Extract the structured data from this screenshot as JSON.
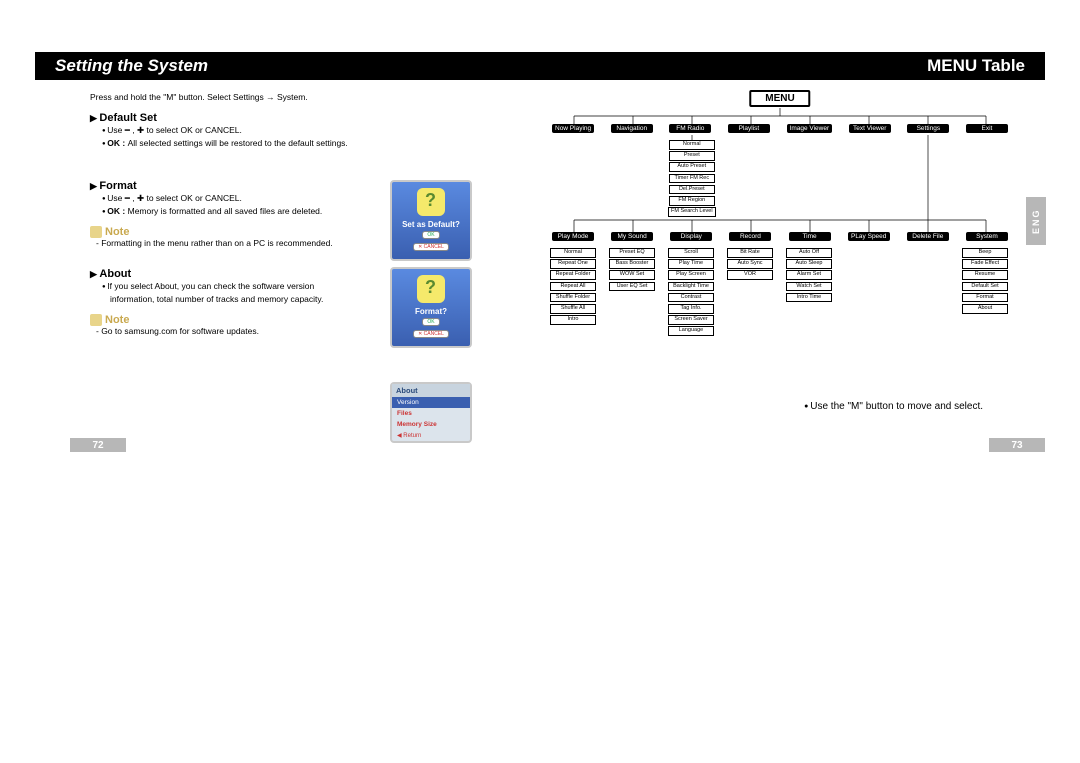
{
  "left": {
    "title": "Setting the System",
    "instruction": "Press and hold the \"M\" button. Select Settings → System.",
    "default_set": {
      "heading": "Default Set",
      "line1": "Use ━ , ✚ to select OK or CANCEL.",
      "line2_prefix": "OK : ",
      "line2": "All selected settings will be restored to the default settings."
    },
    "format": {
      "heading": "Format",
      "line1": "Use ━ , ✚ to select OK or CANCEL.",
      "line2_prefix": "OK : ",
      "line2": "Memory is formatted and all saved files are deleted."
    },
    "note1": {
      "label": "Note",
      "text": "- Formatting in the menu rather than on a PC is recommended."
    },
    "about": {
      "heading": "About",
      "line1": "If you select About, you can check the software version information, total number of tracks and memory capacity."
    },
    "note2": {
      "label": "Note",
      "text": "- Go to samsung.com for software updates."
    },
    "mock_default": {
      "title": "Set as Default?",
      "ok": "OK",
      "cancel": "✕ CANCEL"
    },
    "mock_format": {
      "title": "Format?",
      "ok": "OK",
      "cancel": "✕ CANCEL"
    },
    "mock_about": {
      "title": "About",
      "rows": [
        "Version",
        "Files",
        "Memory Size"
      ],
      "return": "◀ Return"
    },
    "page_num": "72"
  },
  "right": {
    "title": "MENU Table",
    "menu_root": "MENU",
    "eng": "ENG",
    "lvl1": [
      "Now Playing",
      "Navigation",
      "FM Radio",
      "Playlist",
      "Image Viewer",
      "Text Viewer",
      "Settings",
      "Exit"
    ],
    "fm_children": [
      "Normal",
      "Preset",
      "Auto Preset",
      "Timer FM Rec",
      "Del.Preset",
      "FM Region",
      "FM Search Level"
    ],
    "lvl2": [
      "Play Mode",
      "My Sound",
      "Display",
      "Record",
      "Time",
      "PLay Speed",
      "Delete File",
      "System"
    ],
    "playmode": [
      "Normal",
      "Repeat One",
      "Repeat Folder",
      "Repeat All",
      "Shuffle Folder",
      "Shuffle All",
      "Intro"
    ],
    "mysound": [
      "Preset EQ",
      "Bass Booster",
      "WOW Set",
      "User EQ Set"
    ],
    "display": [
      "Scroll",
      "Play Time",
      "Play Screen",
      "Backlight Time",
      "Contrast",
      "Tag Info.",
      "Screen Saver",
      "Language"
    ],
    "record": [
      "Bit Rate",
      "Auto Sync",
      "VOR"
    ],
    "time": [
      "Auto Off",
      "Auto Sleep",
      "Alarm Set",
      "Watch Set",
      "Intro Time"
    ],
    "system": [
      "Beep",
      "Fade Effect",
      "Resume",
      "Default Set",
      "Format",
      "About"
    ],
    "footer": "Use the \"M\" button to move and select.",
    "page_num": "73"
  }
}
